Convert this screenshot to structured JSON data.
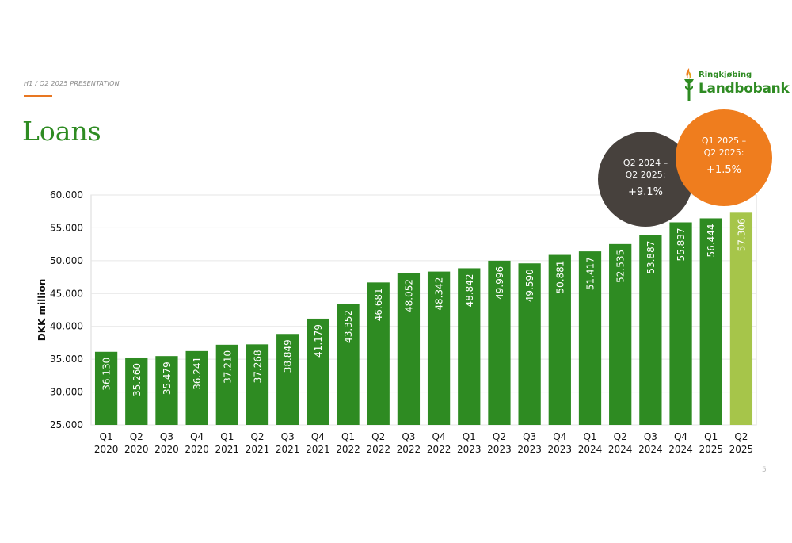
{
  "header": {
    "kicker": "H1 / Q2 2025 PRESENTATION",
    "title": "Loans",
    "page_number": "5"
  },
  "logo": {
    "line1": "Ringkjøbing",
    "line2": "Landbobank",
    "icon": "torch-icon"
  },
  "callouts": [
    {
      "label_line1": "Q2 2024 –",
      "label_line2": "Q2 2025:",
      "value": "+9.1%",
      "color": "#47413d"
    },
    {
      "label_line1": "Q1 2025 –",
      "label_line2": "Q2 2025:",
      "value": "+1.5%",
      "color": "#ef7d1e"
    }
  ],
  "colors": {
    "bar": "#2e8b22",
    "bar_highlight": "#a6c54a",
    "title": "#2e8b22",
    "accent": "#e87722"
  },
  "chart_data": {
    "type": "bar",
    "title": "Loans",
    "ylabel": "DKK million",
    "ylim": [
      25000,
      60000
    ],
    "yticks": [
      25000,
      30000,
      35000,
      40000,
      45000,
      50000,
      55000,
      60000
    ],
    "ytick_labels": [
      "25.000",
      "30.000",
      "35.000",
      "40.000",
      "45.000",
      "50.000",
      "55.000",
      "60.000"
    ],
    "grid": true,
    "categories": [
      [
        "Q1",
        "2020"
      ],
      [
        "Q2",
        "2020"
      ],
      [
        "Q3",
        "2020"
      ],
      [
        "Q4",
        "2020"
      ],
      [
        "Q1",
        "2021"
      ],
      [
        "Q2",
        "2021"
      ],
      [
        "Q3",
        "2021"
      ],
      [
        "Q4",
        "2021"
      ],
      [
        "Q1",
        "2022"
      ],
      [
        "Q2",
        "2022"
      ],
      [
        "Q3",
        "2022"
      ],
      [
        "Q4",
        "2022"
      ],
      [
        "Q1",
        "2023"
      ],
      [
        "Q2",
        "2023"
      ],
      [
        "Q3",
        "2023"
      ],
      [
        "Q4",
        "2023"
      ],
      [
        "Q1",
        "2024"
      ],
      [
        "Q2",
        "2024"
      ],
      [
        "Q3",
        "2024"
      ],
      [
        "Q4",
        "2024"
      ],
      [
        "Q1",
        "2025"
      ],
      [
        "Q2",
        "2025"
      ]
    ],
    "values": [
      36130,
      35260,
      35479,
      36241,
      37210,
      37268,
      38849,
      41179,
      43352,
      46681,
      48052,
      48342,
      48842,
      49996,
      49590,
      50881,
      51417,
      52535,
      53887,
      55837,
      56444,
      57306
    ],
    "value_labels": [
      "36.130",
      "35.260",
      "35.479",
      "36.241",
      "37.210",
      "37.268",
      "38.849",
      "41.179",
      "43.352",
      "46.681",
      "48.052",
      "48.342",
      "48.842",
      "49.996",
      "49.590",
      "50.881",
      "51.417",
      "52.535",
      "53.887",
      "55.837",
      "56.444",
      "57.306"
    ],
    "highlight_index": 21
  }
}
